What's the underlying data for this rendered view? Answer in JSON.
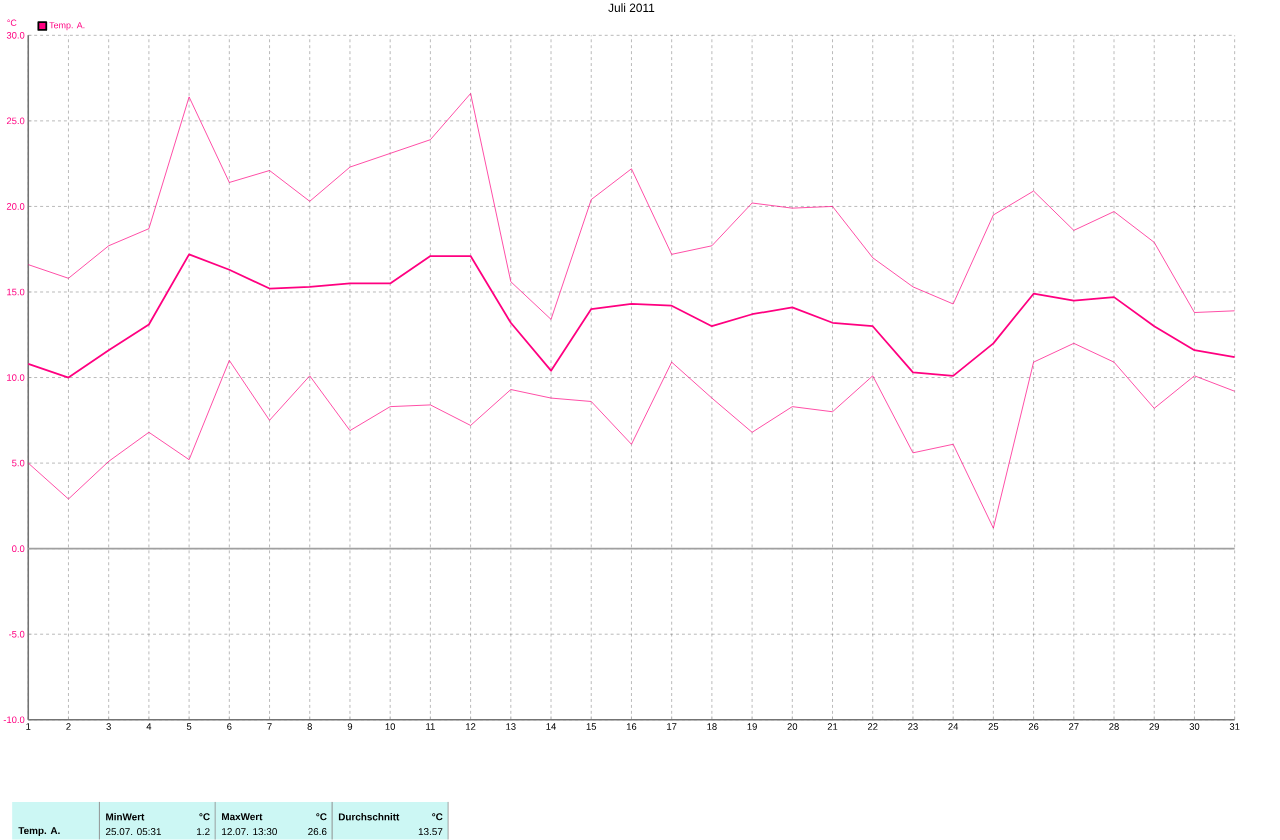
{
  "chart_data": {
    "type": "line",
    "title": "Juli 2011",
    "ylabel": "°C",
    "x": [
      1,
      2,
      3,
      4,
      5,
      6,
      7,
      8,
      9,
      10,
      11,
      12,
      13,
      14,
      15,
      16,
      17,
      18,
      19,
      20,
      21,
      22,
      23,
      24,
      25,
      26,
      27,
      28,
      29,
      30,
      31
    ],
    "series": [
      {
        "color": "#ff0080",
        "values": [
          16.6,
          15.8,
          17.7,
          18.7,
          26.4,
          21.4,
          22.1,
          20.3,
          22.3,
          23.1,
          23.9,
          26.6,
          15.6,
          13.4,
          20.4,
          22.2,
          17.2,
          17.7,
          20.2,
          19.9,
          20.0,
          17.0,
          15.3,
          14.3,
          19.5,
          20.9,
          18.6,
          19.7,
          17.9,
          13.8,
          13.9
        ]
      },
      {
        "name": "Temp. A.",
        "color": "#ff0080",
        "values": [
          10.8,
          10.0,
          11.6,
          13.1,
          17.2,
          16.3,
          15.2,
          15.3,
          15.5,
          15.5,
          17.1,
          17.1,
          13.2,
          10.4,
          14.0,
          14.3,
          14.2,
          13.0,
          13.7,
          14.1,
          13.2,
          13.0,
          10.3,
          10.1,
          12.0,
          14.9,
          14.5,
          14.7,
          13.0,
          11.6,
          11.2
        ]
      },
      {
        "color": "#ff0080",
        "values": [
          5.0,
          2.9,
          5.1,
          6.8,
          5.2,
          11.0,
          7.5,
          10.1,
          6.9,
          8.3,
          8.4,
          7.2,
          9.3,
          8.8,
          8.6,
          6.1,
          10.9,
          8.8,
          6.8,
          8.3,
          8.0,
          10.1,
          5.6,
          6.1,
          1.2,
          10.9,
          12.0,
          10.9,
          8.2,
          10.1,
          9.2
        ]
      }
    ],
    "xlim": [
      1,
      31
    ],
    "xticks": [
      1,
      2,
      3,
      4,
      5,
      6,
      7,
      8,
      9,
      10,
      11,
      12,
      13,
      14,
      15,
      16,
      17,
      18,
      19,
      20,
      21,
      22,
      23,
      24,
      25,
      26,
      27,
      28,
      29,
      30,
      31
    ],
    "ylim": [
      -10,
      30
    ],
    "yticks": [
      {
        "value": -10,
        "label": "-10.0"
      },
      {
        "value": -5,
        "label": "-5.0"
      },
      {
        "value": 0,
        "label": "0.0"
      },
      {
        "value": 5,
        "label": "5.0"
      },
      {
        "value": 10,
        "label": "10.0"
      },
      {
        "value": 15,
        "label": "15.0"
      },
      {
        "value": 20,
        "label": "20.0"
      },
      {
        "value": 25,
        "label": "25.0"
      },
      {
        "value": 30,
        "label": "30.0"
      }
    ],
    "grid": true,
    "legend": "top left",
    "marker": "none",
    "line_style": "solid",
    "ref_lines": [
      {
        "axis": "y",
        "value": 0,
        "color": "#a0a0a0",
        "line_style": "solid"
      }
    ],
    "annotations": [
      "Temp. A.",
      "MinWert",
      "°C",
      "25.07.  05:31",
      "1.2",
      "MaxWert",
      "°C",
      "12.07.  13:30",
      "26.6",
      "Durchschnitt",
      "°C",
      "13.57"
    ]
  }
}
